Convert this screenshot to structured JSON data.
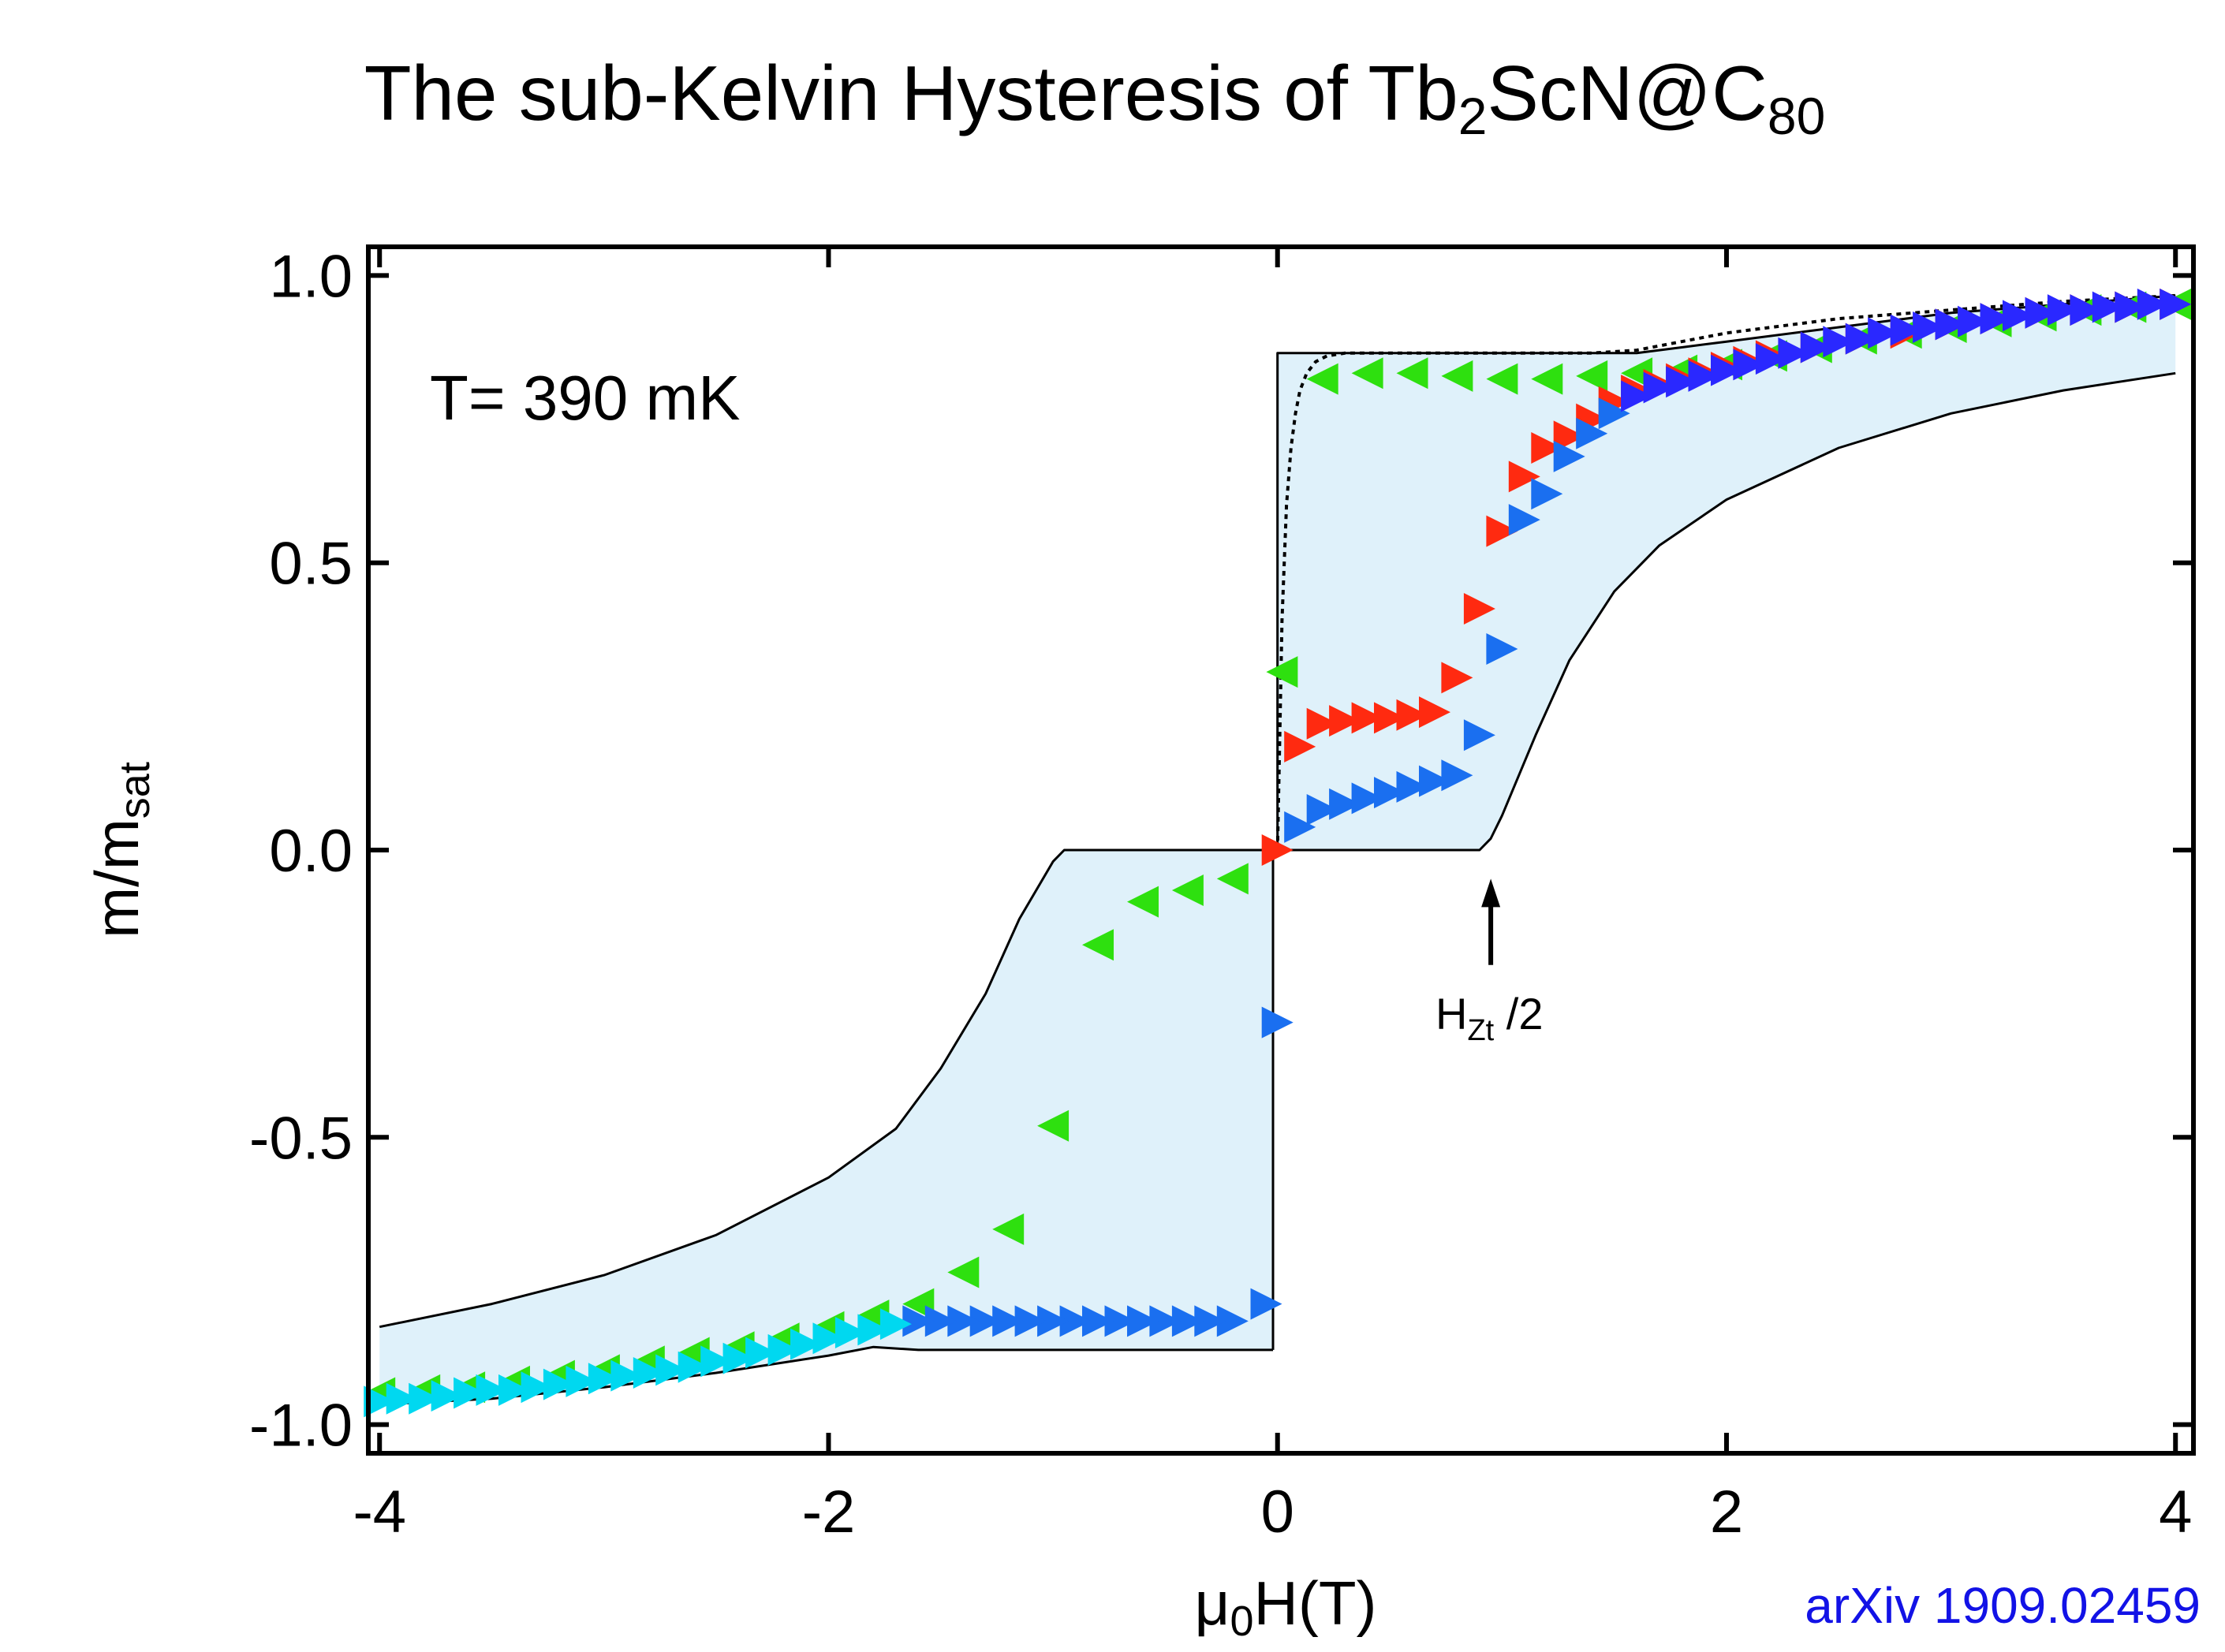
{
  "chart_data": {
    "type": "scatter",
    "title": {
      "text_pre": "The sub-Kelvin Hysteresis of Tb",
      "sub1": "2",
      "text_mid": "ScN@C",
      "sub2": "80"
    },
    "xlabel": {
      "main": "μ",
      "sub": "0",
      "rest": "H(T)"
    },
    "ylabel": {
      "main": "m/m",
      "sub": "sat"
    },
    "xlim": [
      -4.05,
      4.08
    ],
    "ylim": [
      -1.05,
      1.05
    ],
    "x_ticks": [
      {
        "value": -4,
        "label": "-4"
      },
      {
        "value": -2,
        "label": "-2"
      },
      {
        "value": 0,
        "label": "0"
      },
      {
        "value": 2,
        "label": "2"
      },
      {
        "value": 4,
        "label": "4"
      }
    ],
    "y_ticks": [
      {
        "value": 1.0,
        "label": "1.0"
      },
      {
        "value": 0.5,
        "label": "0.5"
      },
      {
        "value": 0.0,
        "label": "0.0"
      },
      {
        "value": -0.5,
        "label": "-0.5"
      },
      {
        "value": -1.0,
        "label": "-1.0"
      }
    ],
    "annotations": {
      "temperature": "T= 390 mK",
      "hzt": {
        "main": "H",
        "sub": "Zt",
        "rest": " /2",
        "arrow_x": 0.95,
        "arrow_y_from": -0.2,
        "arrow_y_to": -0.05
      },
      "source": "arXiv 1909.02459"
    },
    "colors": {
      "shade_fill": "#dff1fa",
      "boundary_line": "#000000",
      "green": "#2ee00f",
      "red": "#ff2a10",
      "blue": "#1a6ff0",
      "cyan": "#00d8f0",
      "darkblue": "#2a28ff"
    },
    "simulated_upper": {
      "x": [
        -4.0,
        -3.5,
        -3.0,
        -2.5,
        -2.0,
        -1.7,
        -1.6,
        -0.02,
        -0.02,
        0.0,
        0.02,
        0.05,
        0.1,
        0.15,
        0.2,
        0.3,
        0.5,
        0.95,
        1.0,
        1.1,
        1.2,
        1.3,
        1.5,
        1.7,
        2.0,
        2.5,
        3.0,
        3.5,
        4.0
      ],
      "y": [
        -0.828,
        -0.79,
        -0.74,
        -0.67,
        -0.57,
        -0.485,
        -0.43,
        0.0,
        0.0,
        0.0,
        0.05,
        0.25,
        0.4,
        0.5,
        0.58,
        0.66,
        0.735,
        0.79,
        0.865,
        0.865,
        0.865,
        0.865,
        0.865,
        0.865,
        0.87,
        0.9,
        0.92,
        0.94,
        0.96
      ]
    },
    "shaded_region": {
      "upper_x": [
        -4.0,
        -3.5,
        -3.0,
        -2.5,
        -2.0,
        -1.7,
        -1.5,
        -1.2,
        -1.0,
        -0.95,
        -0.02,
        -0.02,
        0.0,
        0.0,
        0.8,
        1.6,
        2.0,
        2.5,
        3.0,
        3.5,
        4.0
      ],
      "upper_y": [
        -0.828,
        -0.79,
        -0.74,
        -0.67,
        -0.57,
        -0.485,
        -0.38,
        -0.2,
        -0.06,
        0.0,
        0.0,
        -0.87,
        -0.87,
        0.865,
        0.865,
        0.865,
        0.89,
        0.91,
        0.93,
        0.945,
        0.96
      ]
    },
    "boundary_upper_left": {
      "x": [
        -4.0,
        -3.5,
        -3.0,
        -2.5,
        -2.0,
        -1.7,
        -1.5,
        -1.3,
        -1.15,
        -1.0,
        -0.95,
        -0.02,
        -0.02
      ],
      "y": [
        -0.83,
        -0.79,
        -0.74,
        -0.67,
        -0.57,
        -0.485,
        -0.38,
        -0.25,
        -0.12,
        -0.02,
        0.0,
        0.0,
        -0.87
      ]
    },
    "boundary_lower_left": {
      "x": [
        -4.0,
        -3.5,
        -3.0,
        -2.5,
        -2.0,
        -1.8,
        -1.6,
        -0.02
      ],
      "y": [
        -0.965,
        -0.955,
        -0.935,
        -0.91,
        -0.88,
        -0.865,
        -0.87,
        -0.87
      ]
    },
    "boundary_upper_right": {
      "x": [
        0.0,
        0.0,
        1.6,
        1.8,
        2.0,
        2.5,
        3.0,
        3.5,
        4.0
      ],
      "y": [
        0.0,
        0.865,
        0.865,
        0.875,
        0.885,
        0.91,
        0.935,
        0.95,
        0.965
      ]
    },
    "boundary_lower_right": {
      "x": [
        0.0,
        0.9,
        0.95,
        1.0,
        1.15,
        1.3,
        1.5,
        1.7,
        2.0,
        2.5,
        3.0,
        3.5,
        4.0
      ],
      "y": [
        0.0,
        0.0,
        0.02,
        0.06,
        0.2,
        0.33,
        0.45,
        0.53,
        0.61,
        0.7,
        0.76,
        0.8,
        0.83
      ]
    },
    "dotted_curve": {
      "x": [
        0.0,
        0.01,
        0.02,
        0.04,
        0.06,
        0.08,
        0.1,
        0.13,
        0.17,
        0.22,
        0.3,
        0.4,
        0.6,
        1.0,
        1.4,
        1.6,
        1.8,
        2.0,
        2.5,
        3.0,
        3.5,
        4.0
      ],
      "y": [
        0.0,
        0.2,
        0.4,
        0.6,
        0.7,
        0.76,
        0.8,
        0.83,
        0.85,
        0.86,
        0.865,
        0.865,
        0.865,
        0.865,
        0.865,
        0.87,
        0.885,
        0.9,
        0.925,
        0.94,
        0.955,
        0.965
      ]
    },
    "series": [
      {
        "marker": "left",
        "color_key": "green",
        "x": [
          4.0,
          3.8,
          3.6,
          3.4,
          3.2,
          3.0,
          2.8,
          2.6,
          2.4,
          2.2,
          2.0,
          1.8,
          1.6,
          1.4,
          1.2,
          1.0,
          0.8,
          0.6,
          0.4,
          0.2,
          0.02,
          -0.2,
          -0.4,
          -0.6,
          -0.8,
          -1.0,
          -1.2,
          -1.4,
          -1.6,
          -1.8,
          -2.0,
          -2.2,
          -2.4,
          -2.6,
          -2.8,
          -3.0,
          -3.2,
          -3.4,
          -3.6,
          -3.8,
          -4.0
        ],
        "y": [
          0.95,
          0.945,
          0.94,
          0.93,
          0.92,
          0.91,
          0.9,
          0.89,
          0.875,
          0.86,
          0.845,
          0.835,
          0.83,
          0.825,
          0.82,
          0.82,
          0.825,
          0.83,
          0.83,
          0.82,
          0.31,
          -0.05,
          -0.07,
          -0.09,
          -0.165,
          -0.48,
          -0.66,
          -0.735,
          -0.79,
          -0.81,
          -0.83,
          -0.85,
          -0.865,
          -0.875,
          -0.89,
          -0.905,
          -0.915,
          -0.925,
          -0.935,
          -0.94,
          -0.945
        ]
      },
      {
        "marker": "right",
        "color_key": "red",
        "x": [
          0.0,
          0.1,
          0.2,
          0.3,
          0.4,
          0.5,
          0.6,
          0.7,
          0.8,
          0.9,
          1.0,
          1.1,
          1.2,
          1.3,
          1.4,
          1.5,
          1.6,
          1.7,
          1.8,
          1.9,
          2.0,
          2.1,
          2.2,
          2.4,
          2.6,
          2.8,
          3.0,
          3.2,
          3.4,
          3.6,
          3.8,
          4.0
        ],
        "y": [
          0.0,
          0.18,
          0.22,
          0.225,
          0.23,
          0.23,
          0.235,
          0.24,
          0.3,
          0.42,
          0.555,
          0.65,
          0.7,
          0.72,
          0.75,
          0.78,
          0.8,
          0.81,
          0.82,
          0.83,
          0.84,
          0.85,
          0.86,
          0.875,
          0.89,
          0.9,
          0.915,
          0.925,
          0.935,
          0.94,
          0.945,
          0.95
        ]
      },
      {
        "marker": "right",
        "color_key": "blue",
        "x": [
          0.0,
          0.1,
          0.2,
          0.3,
          0.4,
          0.5,
          0.6,
          0.7,
          0.8,
          0.9,
          1.0,
          1.1,
          1.2,
          1.3,
          1.4,
          1.5
        ],
        "y": [
          -0.3,
          0.04,
          0.07,
          0.08,
          0.09,
          0.1,
          0.11,
          0.12,
          0.13,
          0.2,
          0.35,
          0.575,
          0.62,
          0.685,
          0.725,
          0.76
        ]
      },
      {
        "marker": "right",
        "color_key": "darkblue",
        "x": [
          1.6,
          1.7,
          1.8,
          1.9,
          2.0,
          2.1,
          2.2,
          2.3,
          2.4,
          2.5,
          2.6,
          2.7,
          2.8,
          2.9,
          3.0,
          3.1,
          3.2,
          3.3,
          3.4,
          3.5,
          3.6,
          3.7,
          3.8,
          3.9,
          4.0
        ],
        "y": [
          0.79,
          0.805,
          0.815,
          0.825,
          0.835,
          0.845,
          0.855,
          0.865,
          0.875,
          0.885,
          0.89,
          0.9,
          0.905,
          0.91,
          0.915,
          0.92,
          0.925,
          0.93,
          0.935,
          0.94,
          0.94,
          0.945,
          0.945,
          0.95,
          0.95
        ]
      },
      {
        "marker": "right",
        "color_key": "blue",
        "x": [
          -0.05,
          -0.2,
          -0.3,
          -0.4,
          -0.5,
          -0.6,
          -0.7,
          -0.8,
          -0.9,
          -1.0,
          -1.1,
          -1.2,
          -1.3,
          -1.4,
          -1.5,
          -1.6
        ],
        "y": [
          -0.79,
          -0.82,
          -0.82,
          -0.82,
          -0.82,
          -0.82,
          -0.82,
          -0.82,
          -0.82,
          -0.82,
          -0.82,
          -0.82,
          -0.82,
          -0.82,
          -0.82,
          -0.82
        ]
      },
      {
        "marker": "right",
        "color_key": "cyan",
        "x": [
          -1.7,
          -1.8,
          -1.9,
          -2.0,
          -2.1,
          -2.2,
          -2.3,
          -2.4,
          -2.5,
          -2.6,
          -2.7,
          -2.8,
          -2.9,
          -3.0,
          -3.1,
          -3.2,
          -3.3,
          -3.4,
          -3.5,
          -3.6,
          -3.7,
          -3.8,
          -3.9,
          -4.0
        ],
        "y": [
          -0.825,
          -0.835,
          -0.84,
          -0.85,
          -0.86,
          -0.87,
          -0.875,
          -0.885,
          -0.89,
          -0.9,
          -0.905,
          -0.91,
          -0.915,
          -0.92,
          -0.925,
          -0.93,
          -0.935,
          -0.94,
          -0.94,
          -0.945,
          -0.95,
          -0.955,
          -0.955,
          -0.96
        ]
      }
    ]
  }
}
